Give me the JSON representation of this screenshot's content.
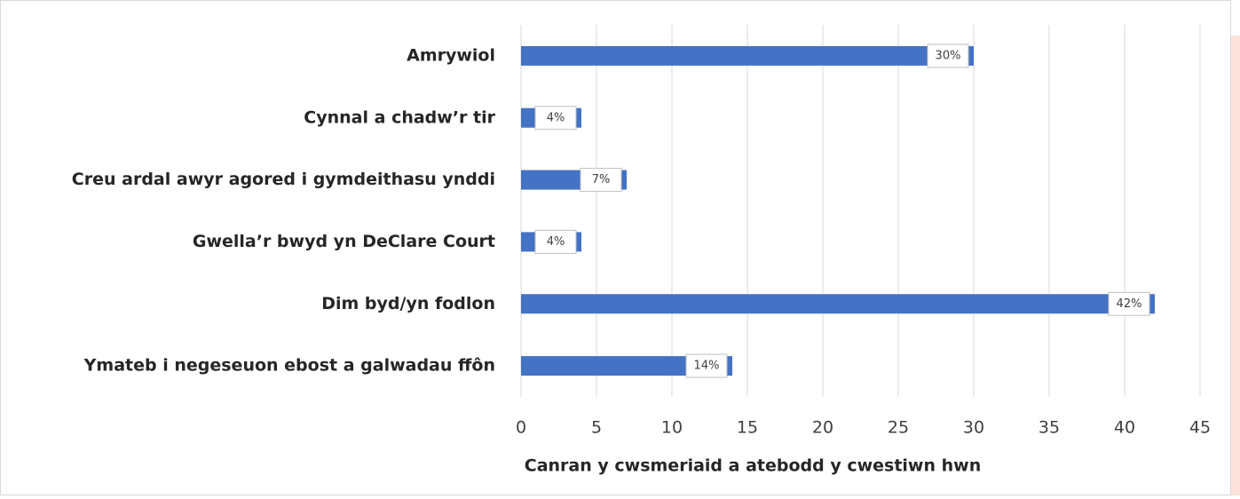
{
  "chart_data": {
    "type": "bar",
    "orientation": "horizontal",
    "categories": [
      "Amrywiol",
      "Cynnal a chadw’r tir",
      "Creu ardal awyr agored i gymdeithasu ynddi",
      "Gwella’r bwyd yn DeClare Court",
      "Dim byd/yn fodlon",
      "Ymateb i negeseuon ebost a galwadau ffôn"
    ],
    "values": [
      30,
      4,
      7,
      4,
      42,
      14
    ],
    "value_labels": [
      "30%",
      "4%",
      "7%",
      "4%",
      "42%",
      "14%"
    ],
    "color": "#4472c4",
    "xlabel": "Canran y cwsmeriaid a atebodd y cwestiwn hwn",
    "xlim": [
      0,
      45
    ],
    "xticks": [
      0,
      5,
      10,
      15,
      20,
      25,
      30,
      35,
      40,
      45
    ],
    "grid": true
  }
}
